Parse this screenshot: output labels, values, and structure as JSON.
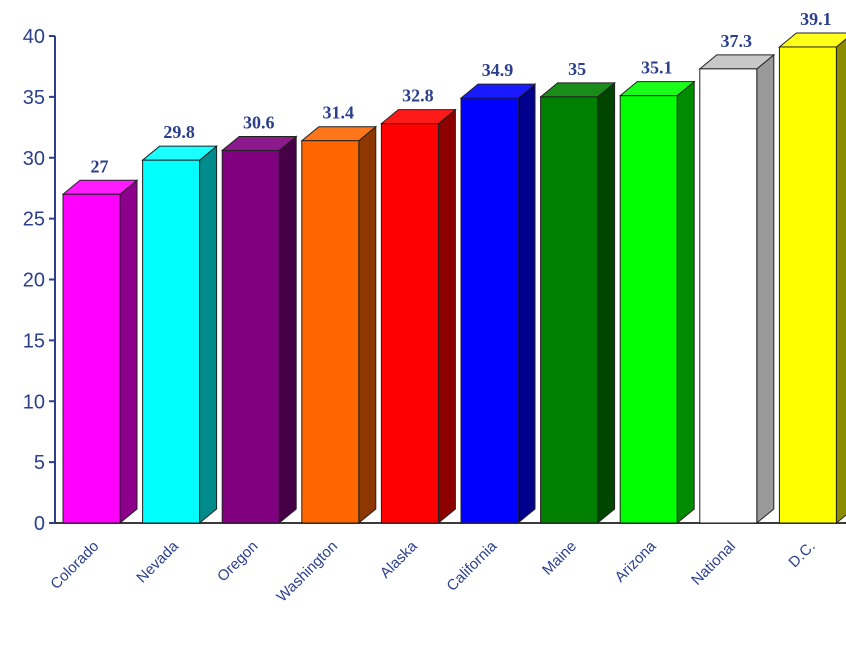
{
  "chart_data": {
    "type": "bar",
    "title": "",
    "xlabel": "",
    "ylabel": "",
    "ylim": [
      0,
      40
    ],
    "yticks": [
      0,
      5,
      10,
      15,
      20,
      25,
      30,
      35,
      40
    ],
    "grid": false,
    "style": "3d-columns",
    "categories": [
      "Colorado",
      "Nevada",
      "Oregon",
      "Washington",
      "Alaska",
      "California",
      "Maine",
      "Arizona",
      "National",
      "D.C."
    ],
    "values": [
      27,
      29.8,
      30.6,
      31.4,
      32.8,
      34.9,
      35,
      35.1,
      37.3,
      39.1
    ],
    "value_labels": [
      "27",
      "29.8",
      "30.6",
      "31.4",
      "32.8",
      "34.9",
      "35",
      "35.1",
      "37.3",
      "39.1"
    ],
    "colors": [
      "#ff00ff",
      "#00ffff",
      "#800080",
      "#ff6600",
      "#ff0000",
      "#0000ff",
      "#007f00",
      "#00ff00",
      "#ffffff",
      "#ffff00"
    ],
    "text_color": "#2b3f8c",
    "axis_color": "#2b3f8c"
  }
}
